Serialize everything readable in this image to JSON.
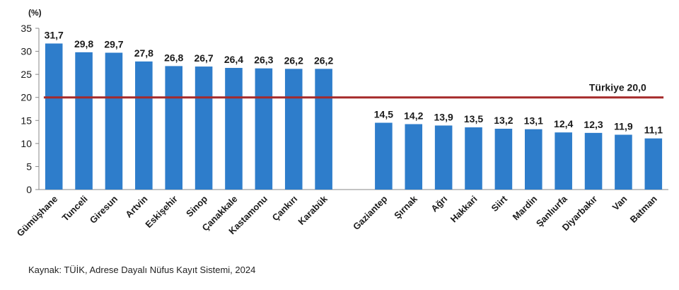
{
  "chart_data": {
    "type": "bar",
    "unit_label": "(%)",
    "ylim": [
      0,
      35
    ],
    "yticks": [
      0,
      5,
      10,
      15,
      20,
      25,
      30,
      35
    ],
    "bar_color": "#2e7dcb",
    "reference_color": "#a52a2a",
    "groups": [
      {
        "categories": [
          "Gümüşhane",
          "Tunceli",
          "Giresun",
          "Artvin",
          "Eskişehir",
          "Sinop",
          "Çanakkale",
          "Kastamonu",
          "Çankırı",
          "Karabük"
        ],
        "values": [
          31.7,
          29.8,
          29.7,
          27.8,
          26.8,
          26.7,
          26.4,
          26.3,
          26.2,
          26.2
        ],
        "value_labels": [
          "31,7",
          "29,8",
          "29,7",
          "27,8",
          "26,8",
          "26,7",
          "26,4",
          "26,3",
          "26,2",
          "26,2"
        ]
      },
      {
        "categories": [
          "Gaziantep",
          "Şırnak",
          "Ağrı",
          "Hakkari",
          "Siirt",
          "Mardin",
          "Şanlıurfa",
          "Diyarbakır",
          "Van",
          "Batman"
        ],
        "values": [
          14.5,
          14.2,
          13.9,
          13.5,
          13.2,
          13.1,
          12.4,
          12.3,
          11.9,
          11.1
        ],
        "value_labels": [
          "14,5",
          "14,2",
          "13,9",
          "13,5",
          "13,2",
          "13,1",
          "12,4",
          "12,3",
          "11,9",
          "11,1"
        ]
      }
    ],
    "reference_line": {
      "value": 20.0,
      "label": "Türkiye",
      "value_label": "20,0"
    }
  },
  "source": "Kaynak: TÜİK, Adrese Dayalı Nüfus Kayıt Sistemi, 2024"
}
